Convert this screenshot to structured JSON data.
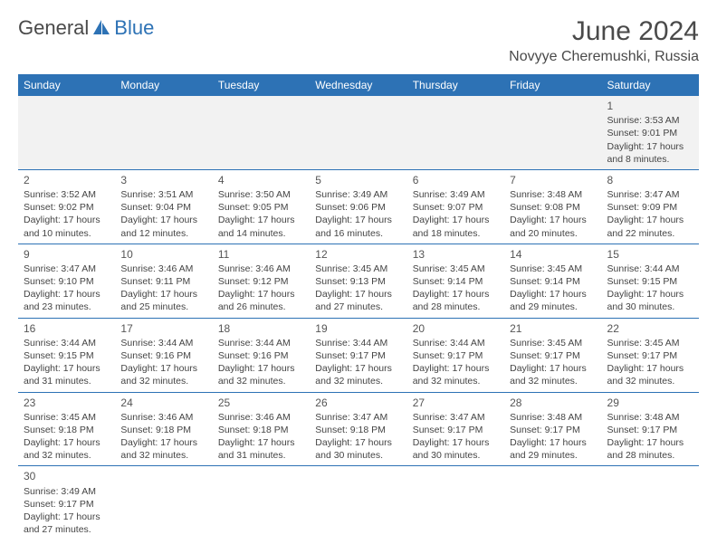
{
  "logo": {
    "part1": "General",
    "part2": "Blue"
  },
  "title": "June 2024",
  "location": "Novyye Cheremushki, Russia",
  "colors": {
    "header_bg": "#2d72b5",
    "header_fg": "#ffffff",
    "border": "#2d72b5",
    "alt_row_bg": "#f2f2f2",
    "text": "#444444",
    "title_color": "#4a4a4a"
  },
  "weekdays": [
    "Sunday",
    "Monday",
    "Tuesday",
    "Wednesday",
    "Thursday",
    "Friday",
    "Saturday"
  ],
  "weeks": [
    [
      null,
      null,
      null,
      null,
      null,
      null,
      {
        "day": "1",
        "sunrise": "Sunrise: 3:53 AM",
        "sunset": "Sunset: 9:01 PM",
        "daylight": "Daylight: 17 hours and 8 minutes."
      }
    ],
    [
      {
        "day": "2",
        "sunrise": "Sunrise: 3:52 AM",
        "sunset": "Sunset: 9:02 PM",
        "daylight": "Daylight: 17 hours and 10 minutes."
      },
      {
        "day": "3",
        "sunrise": "Sunrise: 3:51 AM",
        "sunset": "Sunset: 9:04 PM",
        "daylight": "Daylight: 17 hours and 12 minutes."
      },
      {
        "day": "4",
        "sunrise": "Sunrise: 3:50 AM",
        "sunset": "Sunset: 9:05 PM",
        "daylight": "Daylight: 17 hours and 14 minutes."
      },
      {
        "day": "5",
        "sunrise": "Sunrise: 3:49 AM",
        "sunset": "Sunset: 9:06 PM",
        "daylight": "Daylight: 17 hours and 16 minutes."
      },
      {
        "day": "6",
        "sunrise": "Sunrise: 3:49 AM",
        "sunset": "Sunset: 9:07 PM",
        "daylight": "Daylight: 17 hours and 18 minutes."
      },
      {
        "day": "7",
        "sunrise": "Sunrise: 3:48 AM",
        "sunset": "Sunset: 9:08 PM",
        "daylight": "Daylight: 17 hours and 20 minutes."
      },
      {
        "day": "8",
        "sunrise": "Sunrise: 3:47 AM",
        "sunset": "Sunset: 9:09 PM",
        "daylight": "Daylight: 17 hours and 22 minutes."
      }
    ],
    [
      {
        "day": "9",
        "sunrise": "Sunrise: 3:47 AM",
        "sunset": "Sunset: 9:10 PM",
        "daylight": "Daylight: 17 hours and 23 minutes."
      },
      {
        "day": "10",
        "sunrise": "Sunrise: 3:46 AM",
        "sunset": "Sunset: 9:11 PM",
        "daylight": "Daylight: 17 hours and 25 minutes."
      },
      {
        "day": "11",
        "sunrise": "Sunrise: 3:46 AM",
        "sunset": "Sunset: 9:12 PM",
        "daylight": "Daylight: 17 hours and 26 minutes."
      },
      {
        "day": "12",
        "sunrise": "Sunrise: 3:45 AM",
        "sunset": "Sunset: 9:13 PM",
        "daylight": "Daylight: 17 hours and 27 minutes."
      },
      {
        "day": "13",
        "sunrise": "Sunrise: 3:45 AM",
        "sunset": "Sunset: 9:14 PM",
        "daylight": "Daylight: 17 hours and 28 minutes."
      },
      {
        "day": "14",
        "sunrise": "Sunrise: 3:45 AM",
        "sunset": "Sunset: 9:14 PM",
        "daylight": "Daylight: 17 hours and 29 minutes."
      },
      {
        "day": "15",
        "sunrise": "Sunrise: 3:44 AM",
        "sunset": "Sunset: 9:15 PM",
        "daylight": "Daylight: 17 hours and 30 minutes."
      }
    ],
    [
      {
        "day": "16",
        "sunrise": "Sunrise: 3:44 AM",
        "sunset": "Sunset: 9:15 PM",
        "daylight": "Daylight: 17 hours and 31 minutes."
      },
      {
        "day": "17",
        "sunrise": "Sunrise: 3:44 AM",
        "sunset": "Sunset: 9:16 PM",
        "daylight": "Daylight: 17 hours and 32 minutes."
      },
      {
        "day": "18",
        "sunrise": "Sunrise: 3:44 AM",
        "sunset": "Sunset: 9:16 PM",
        "daylight": "Daylight: 17 hours and 32 minutes."
      },
      {
        "day": "19",
        "sunrise": "Sunrise: 3:44 AM",
        "sunset": "Sunset: 9:17 PM",
        "daylight": "Daylight: 17 hours and 32 minutes."
      },
      {
        "day": "20",
        "sunrise": "Sunrise: 3:44 AM",
        "sunset": "Sunset: 9:17 PM",
        "daylight": "Daylight: 17 hours and 32 minutes."
      },
      {
        "day": "21",
        "sunrise": "Sunrise: 3:45 AM",
        "sunset": "Sunset: 9:17 PM",
        "daylight": "Daylight: 17 hours and 32 minutes."
      },
      {
        "day": "22",
        "sunrise": "Sunrise: 3:45 AM",
        "sunset": "Sunset: 9:17 PM",
        "daylight": "Daylight: 17 hours and 32 minutes."
      }
    ],
    [
      {
        "day": "23",
        "sunrise": "Sunrise: 3:45 AM",
        "sunset": "Sunset: 9:18 PM",
        "daylight": "Daylight: 17 hours and 32 minutes."
      },
      {
        "day": "24",
        "sunrise": "Sunrise: 3:46 AM",
        "sunset": "Sunset: 9:18 PM",
        "daylight": "Daylight: 17 hours and 32 minutes."
      },
      {
        "day": "25",
        "sunrise": "Sunrise: 3:46 AM",
        "sunset": "Sunset: 9:18 PM",
        "daylight": "Daylight: 17 hours and 31 minutes."
      },
      {
        "day": "26",
        "sunrise": "Sunrise: 3:47 AM",
        "sunset": "Sunset: 9:18 PM",
        "daylight": "Daylight: 17 hours and 30 minutes."
      },
      {
        "day": "27",
        "sunrise": "Sunrise: 3:47 AM",
        "sunset": "Sunset: 9:17 PM",
        "daylight": "Daylight: 17 hours and 30 minutes."
      },
      {
        "day": "28",
        "sunrise": "Sunrise: 3:48 AM",
        "sunset": "Sunset: 9:17 PM",
        "daylight": "Daylight: 17 hours and 29 minutes."
      },
      {
        "day": "29",
        "sunrise": "Sunrise: 3:48 AM",
        "sunset": "Sunset: 9:17 PM",
        "daylight": "Daylight: 17 hours and 28 minutes."
      }
    ],
    [
      {
        "day": "30",
        "sunrise": "Sunrise: 3:49 AM",
        "sunset": "Sunset: 9:17 PM",
        "daylight": "Daylight: 17 hours and 27 minutes."
      },
      null,
      null,
      null,
      null,
      null,
      null
    ]
  ]
}
